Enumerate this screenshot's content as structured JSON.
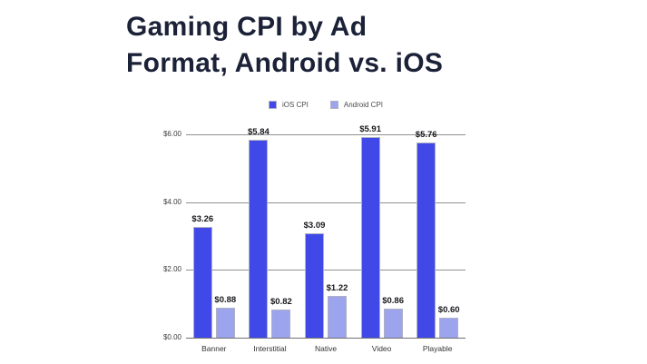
{
  "title": "Gaming CPI by Ad\nFormat, Android vs. iOS",
  "colors": {
    "ios_bar": "#4048e8",
    "android_bar": "#9da4ee",
    "bar_border": "#b0b0c4",
    "gridline": "#8f8f8f",
    "title_text": "#1b2137"
  },
  "chart_data": {
    "type": "bar",
    "title": "Gaming CPI by Ad Format, Android vs. iOS",
    "categories": [
      "Banner",
      "Interstitial",
      "Native",
      "Video",
      "Playable"
    ],
    "series": [
      {
        "name": "iOS CPI",
        "color": "#4048e8",
        "values": [
          3.26,
          5.84,
          3.09,
          5.91,
          5.76
        ]
      },
      {
        "name": "Android CPI",
        "color": "#9da4ee",
        "values": [
          0.88,
          0.82,
          1.22,
          0.86,
          0.6
        ]
      }
    ],
    "value_labels": [
      [
        "$3.26",
        "$5.84",
        "$3.09",
        "$5.91",
        "$5.76"
      ],
      [
        "$0.88",
        "$0.82",
        "$1.22",
        "$0.86",
        "$0.60"
      ]
    ],
    "y_ticks": [
      "$0.00",
      "$2.00",
      "$4.00",
      "$6.00"
    ],
    "y_tick_values": [
      0,
      2,
      4,
      6
    ],
    "ylim": [
      0,
      6
    ],
    "xlabel": "",
    "ylabel": "",
    "grid": true,
    "legend_position": "top"
  }
}
